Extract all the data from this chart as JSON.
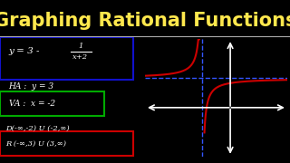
{
  "title": "Graphing Rational Functions",
  "title_color": "#FFE84D",
  "title_fontsize": 15,
  "bg_color": "#000000",
  "ha_text": "HA :  y = 3",
  "va_text": "VA :  x = -2",
  "domain_text": "D(-∞,-2) U (-2,∞)",
  "range_text": "R (-∞,3) U (3,∞)",
  "text_color": "#FFFFFF",
  "box1_color": "#1111CC",
  "box2_color": "#00AA00",
  "box3_color": "#CC0000",
  "axis_color": "#FFFFFF",
  "asymptote_color": "#3355FF",
  "curve_color": "#CC0000",
  "separator_color": "#AAAAAA"
}
